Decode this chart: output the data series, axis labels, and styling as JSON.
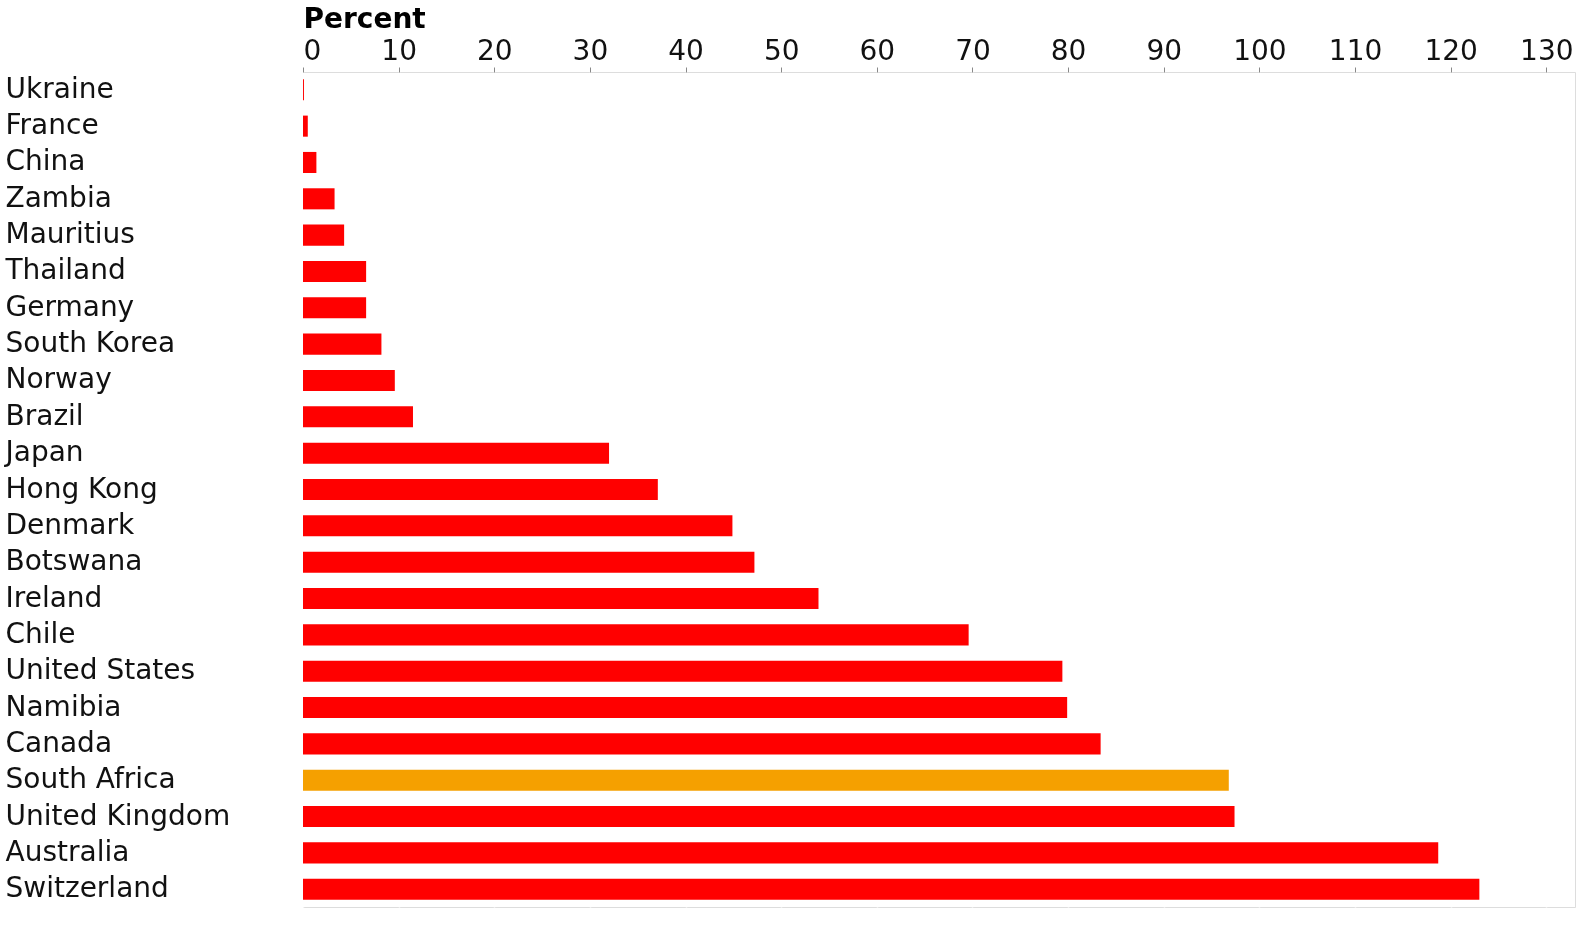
{
  "chart_data": {
    "type": "bar",
    "orientation": "horizontal",
    "xlabel": "Percent",
    "categories": [
      "Ukraine",
      "France",
      "China",
      "Zambia",
      "Mauritius",
      "Thailand",
      "Germany",
      "South Korea",
      "Norway",
      "Brazil",
      "Japan",
      "Hong Kong",
      "Denmark",
      "Botswana",
      "Ireland",
      "Chile",
      "United States",
      "Namibia",
      "Canada",
      "South Africa",
      "United Kingdom",
      "Australia",
      "Switzerland"
    ],
    "values": [
      0.1,
      0.5,
      1.4,
      3.3,
      4.3,
      6.6,
      6.6,
      8.2,
      9.6,
      11.5,
      32.0,
      37.1,
      44.9,
      47.2,
      53.9,
      69.6,
      79.4,
      79.9,
      83.4,
      96.8,
      97.4,
      118.7,
      123.0
    ],
    "colors": [
      "#ff0000",
      "#ff0000",
      "#ff0000",
      "#ff0000",
      "#ff0000",
      "#ff0000",
      "#ff0000",
      "#ff0000",
      "#ff0000",
      "#ff0000",
      "#ff0000",
      "#ff0000",
      "#ff0000",
      "#ff0000",
      "#ff0000",
      "#ff0000",
      "#ff0000",
      "#ff0000",
      "#ff0000",
      "#f5a000",
      "#ff0000",
      "#ff0000",
      "#ff0000"
    ],
    "xlim": [
      0,
      133
    ],
    "xticks": [
      0,
      10,
      20,
      30,
      40,
      50,
      60,
      70,
      80,
      90,
      100,
      110,
      120,
      130
    ],
    "grid": "x",
    "legend": false
  }
}
